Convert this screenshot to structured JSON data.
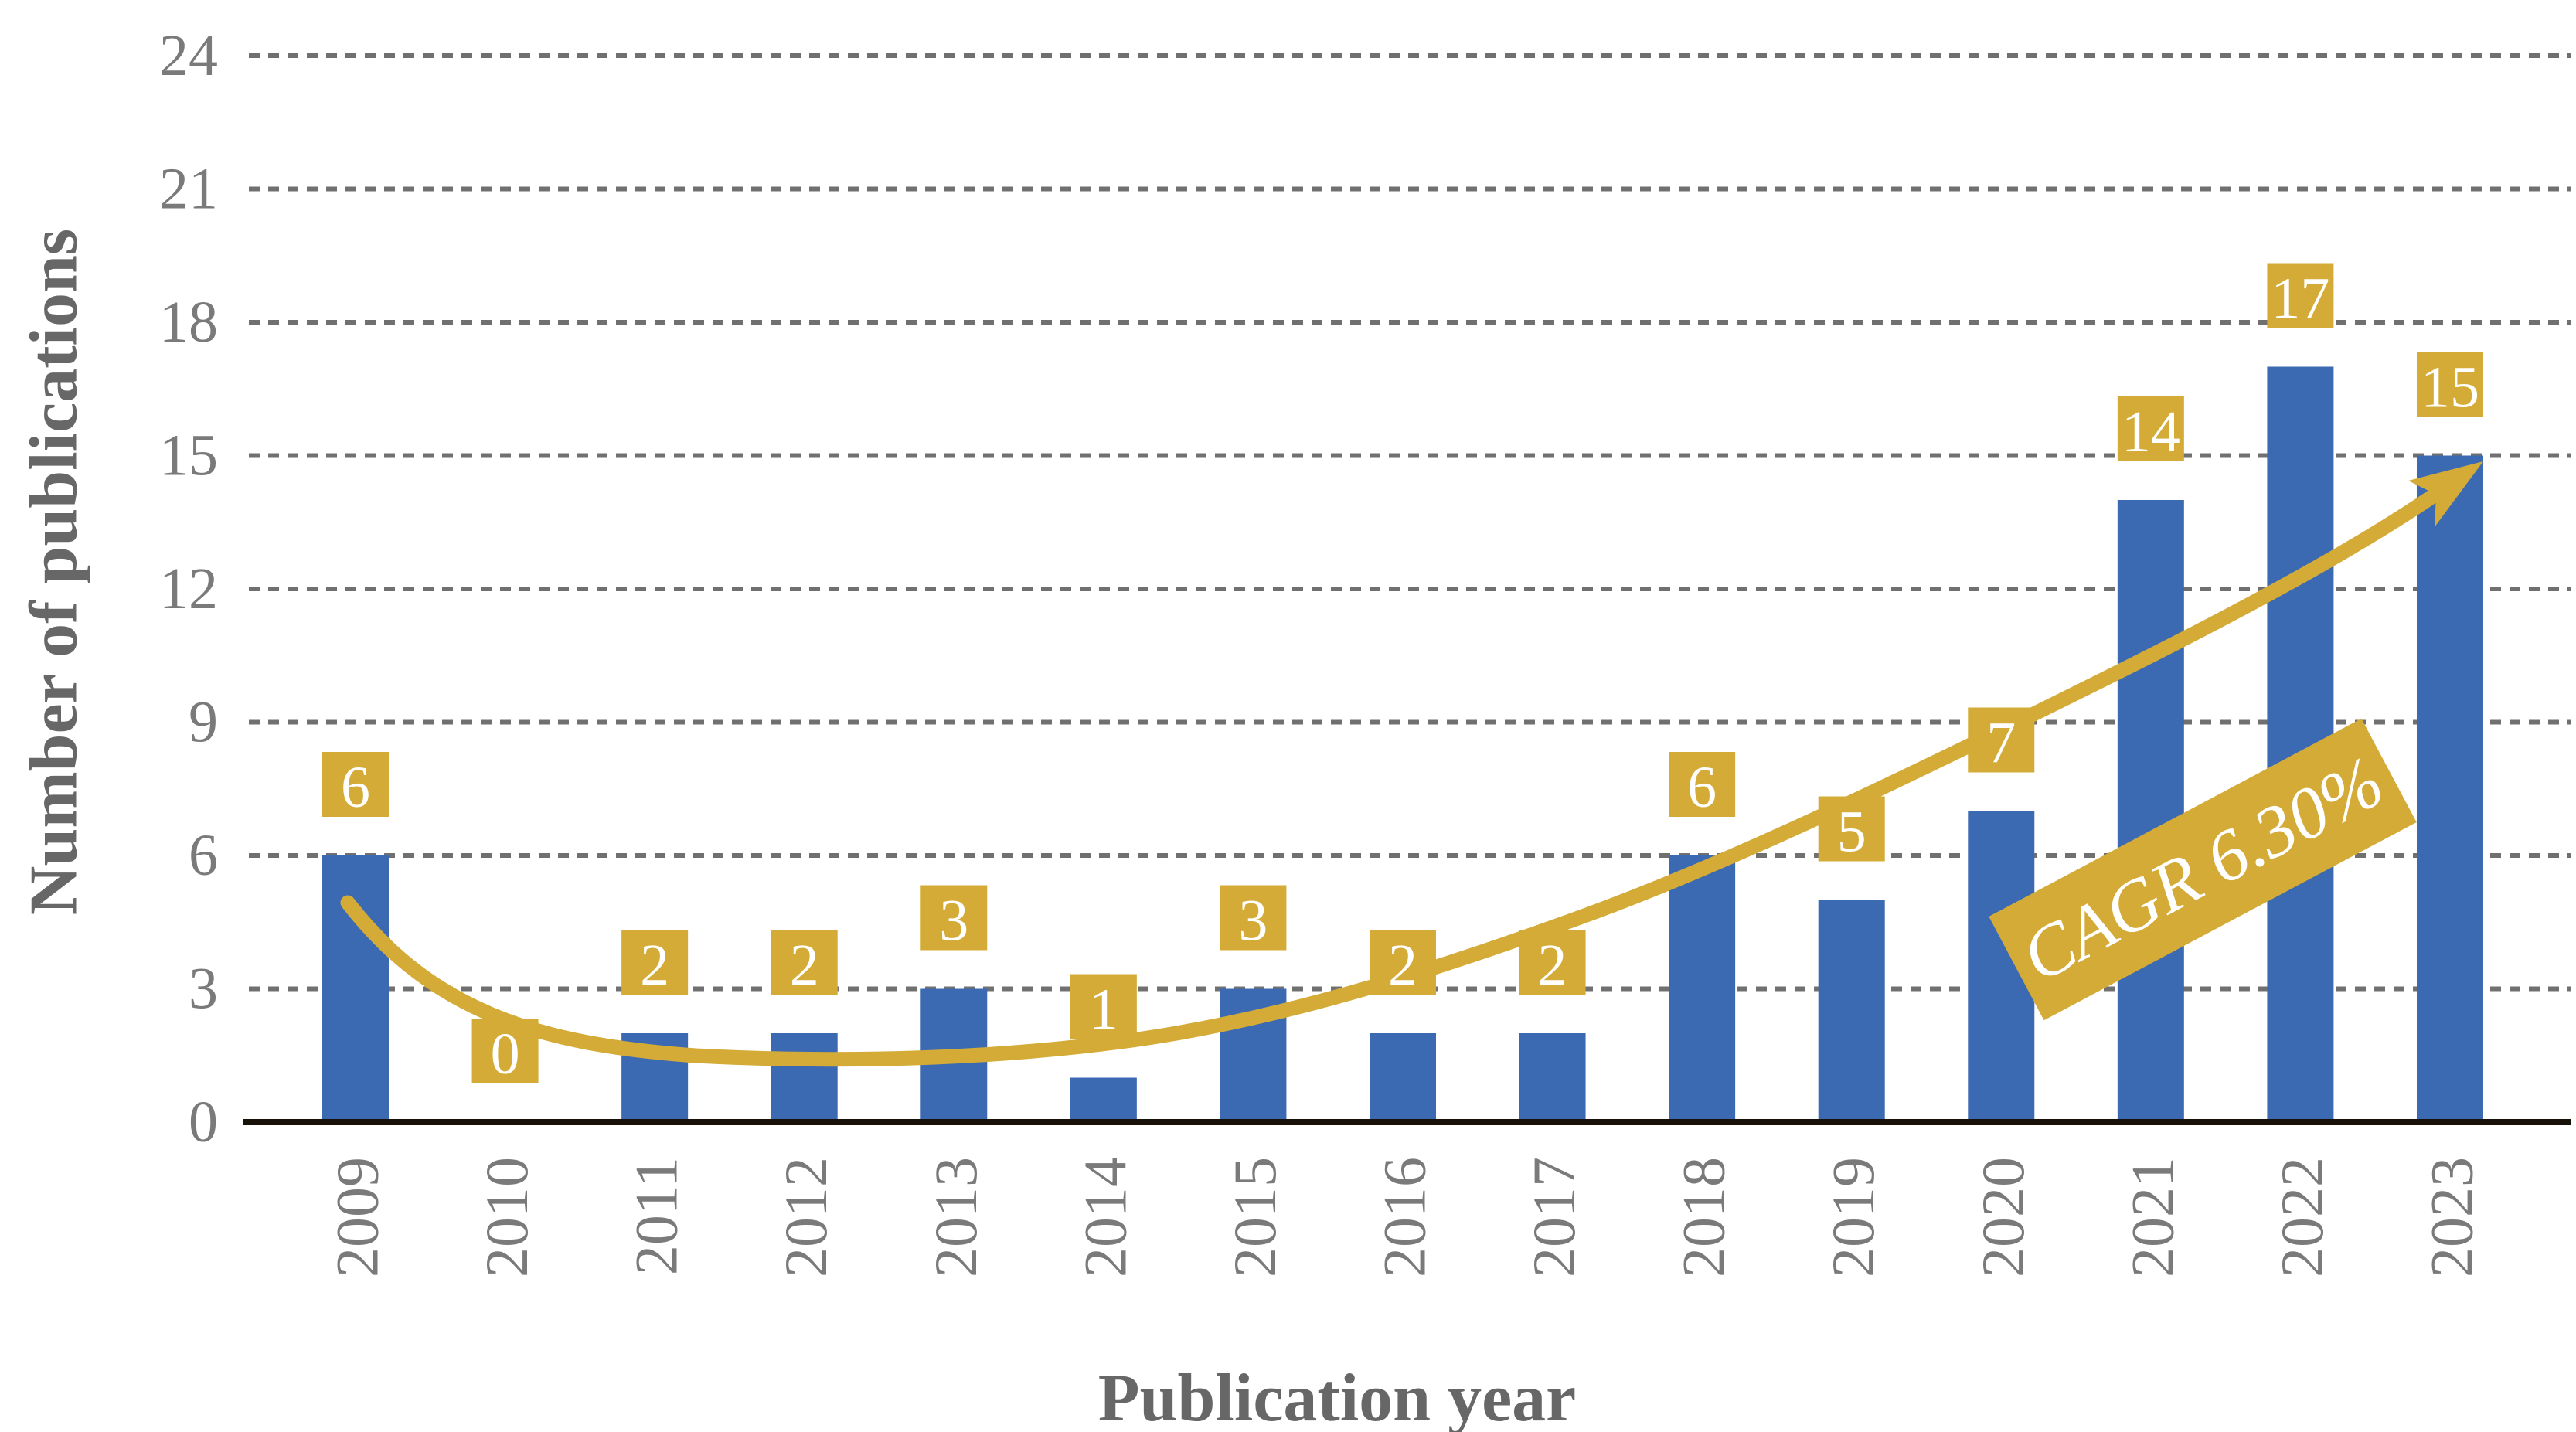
{
  "figure": {
    "y_axis_title": "Number of publications",
    "x_axis_title": "Publication year",
    "cagr_label": "CAGR 6.30%"
  },
  "colors": {
    "bar_blue": "#3b6ab2",
    "gold": "#d4ab36",
    "gridline_gray": "#707070",
    "tick_gray": "#7a7a7a",
    "title_gray": "#676767",
    "axis_line_black": "#17110a",
    "value_text_white": "#ffffff"
  },
  "chart_data": {
    "type": "bar",
    "title": "",
    "categories": [
      "2009",
      "2010",
      "2011",
      "2012",
      "2013",
      "2014",
      "2015",
      "2016",
      "2017",
      "2018",
      "2019",
      "2020",
      "2021",
      "2022",
      "2023"
    ],
    "values": [
      6,
      0,
      2,
      2,
      3,
      1,
      3,
      2,
      2,
      6,
      5,
      7,
      14,
      17,
      15
    ],
    "xlabel": "Publication year",
    "ylabel": "Number of publications",
    "ylim": [
      0,
      24
    ],
    "yticks": [
      0,
      3,
      6,
      9,
      12,
      15,
      18,
      21,
      24
    ],
    "grid": "horizontal-dotted",
    "legend": "none",
    "data_labels": "gold boxes above bars, white serif numerals",
    "trendline": {
      "label": "CAGR 6.30%",
      "style": "smooth exponential fit curve with arrowhead",
      "color": "#d4ab36"
    }
  }
}
